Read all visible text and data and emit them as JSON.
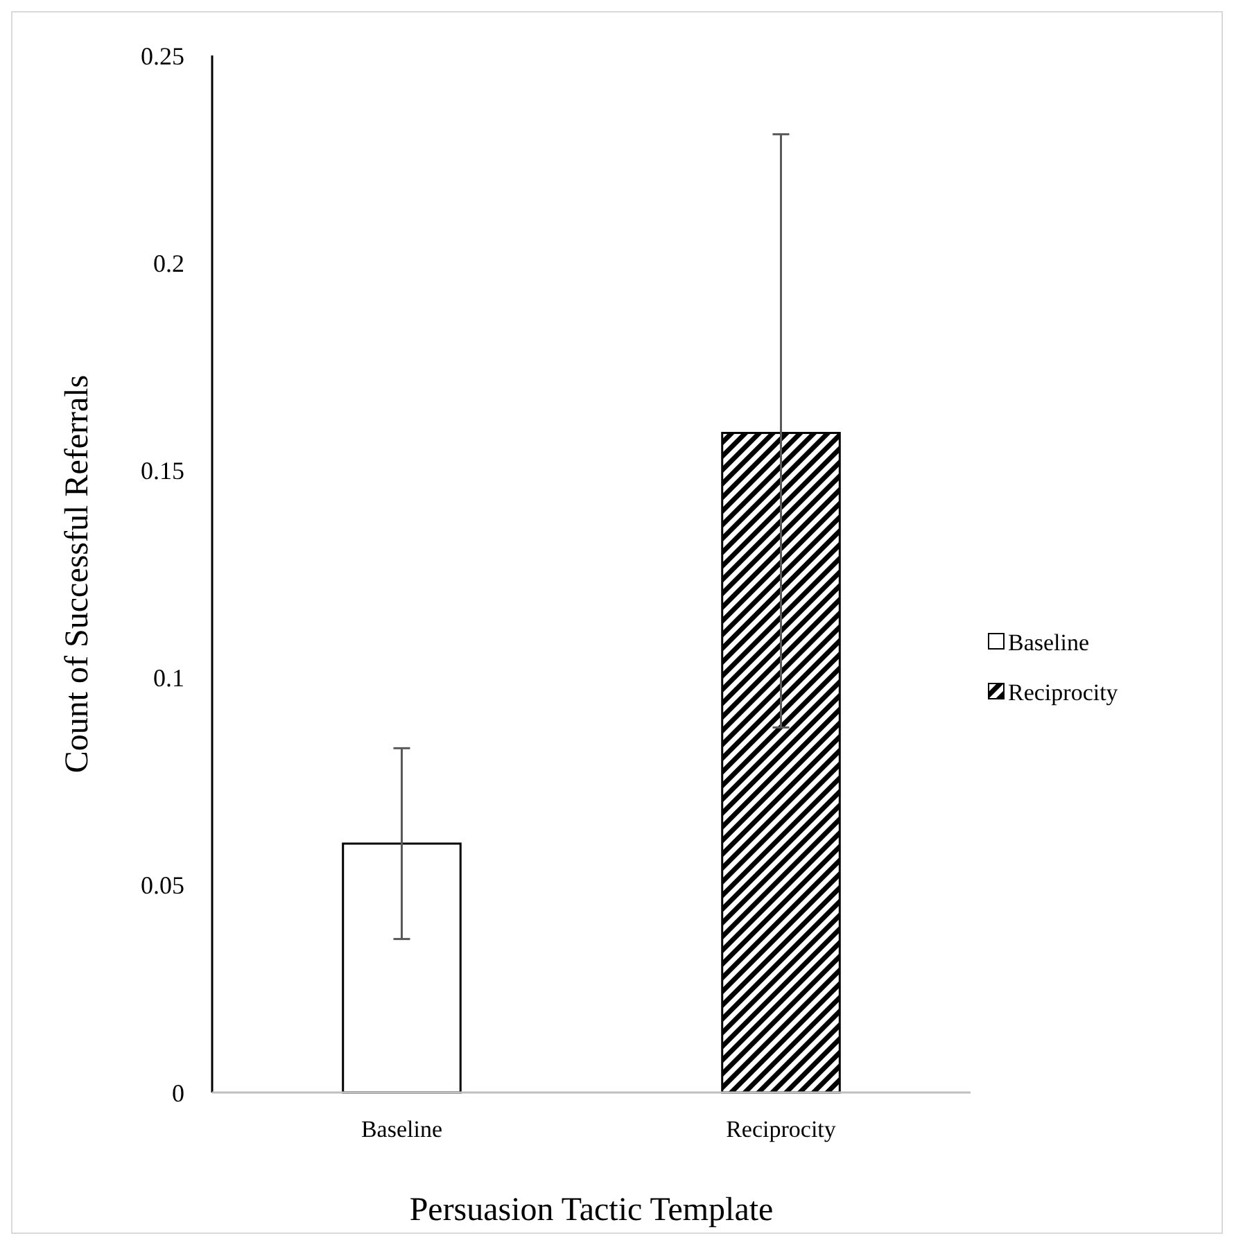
{
  "chart_data": {
    "type": "bar",
    "xlabel": "Persuasion Tactic Template",
    "ylabel": "Count of Successful Referrals",
    "categories": [
      "Baseline",
      "Reciprocity"
    ],
    "series": [
      {
        "name": "Baseline",
        "color": "#ffffff",
        "values": [
          0.06,
          null
        ],
        "errors": [
          [
            0.037,
            0.083
          ],
          null
        ]
      },
      {
        "name": "Reciprocity",
        "color": "#000000",
        "values": [
          null,
          0.159
        ],
        "errors": [
          null,
          [
            0.088,
            0.231
          ]
        ]
      }
    ],
    "ylim": [
      0,
      0.25
    ],
    "yticks": [
      0,
      0.05,
      0.1,
      0.15,
      0.2,
      0.25
    ],
    "grid": false,
    "legend": "right"
  }
}
